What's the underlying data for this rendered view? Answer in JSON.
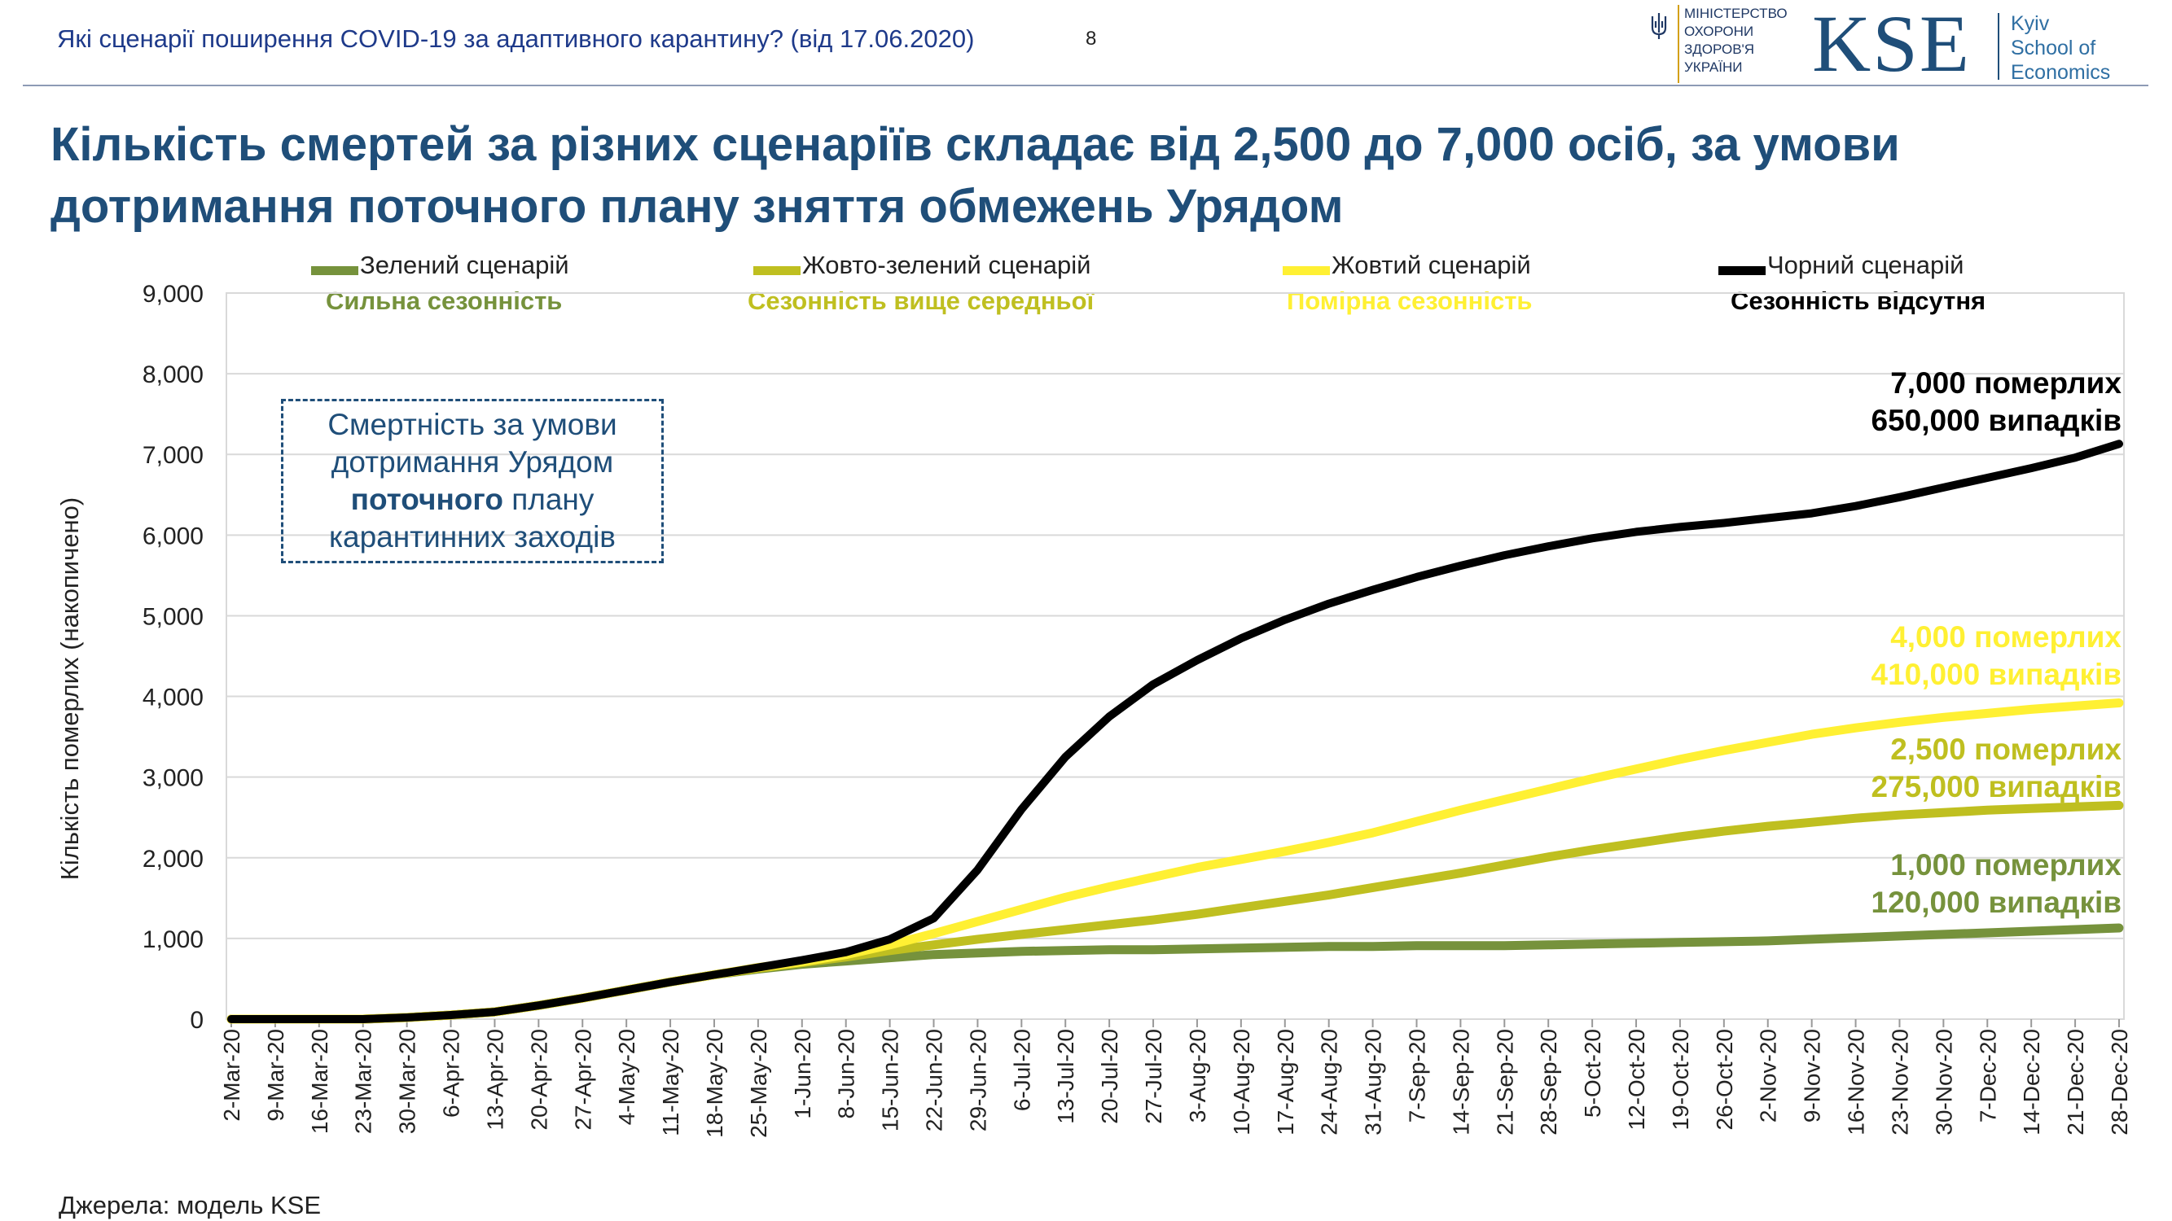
{
  "header": {
    "subtitle": "Які сценарії поширення COVID-19 за адаптивного карантину? (від 17.06.2020)",
    "page_number": "8",
    "ministry_lines": [
      "Міністерство",
      "охорони",
      "здоров'я",
      "України"
    ],
    "kse_mark": "KSE",
    "kse_name_lines": [
      "Kyiv",
      "School of",
      "Economics"
    ]
  },
  "title": "Кількість смертей за різних сценаріїв складає від 2,500 до 7,000 осіб, за умови дотримання поточного плану зняття обмежень Урядом",
  "note": {
    "line1": "Смертність за умови",
    "line2": "дотримання Урядом",
    "line3_bold": "поточного",
    "line3_rest": " плану",
    "line4": "карантинних заходів"
  },
  "annotations": [
    {
      "line1": "7,000 померлих",
      "line2": "650,000 випадків"
    },
    {
      "line1": "4,000 померлих",
      "line2": "410,000 випадків"
    },
    {
      "line1": "2,500 померлих",
      "line2": "275,000 випадків"
    },
    {
      "line1": "1,000 померлих",
      "line2": "120,000 випадків"
    }
  ],
  "source": "Джерела: модель KSE",
  "colors": {
    "green": "#76923c",
    "yellow_green": "#bfbf20",
    "yellow": "#fff033",
    "black": "#000000",
    "title_blue": "#1f4e79",
    "header_blue": "#1e3a8a"
  },
  "chart_data": {
    "type": "line",
    "ylabel": "Кількість померлих (накопичено)",
    "ylim": [
      0,
      9000
    ],
    "yticks": [
      "0",
      "1,000",
      "2,000",
      "3,000",
      "4,000",
      "5,000",
      "6,000",
      "7,000",
      "8,000",
      "9,000"
    ],
    "grid": true,
    "legend_position": "top",
    "x": [
      "2-Mar-20",
      "9-Mar-20",
      "16-Mar-20",
      "23-Mar-20",
      "30-Mar-20",
      "6-Apr-20",
      "13-Apr-20",
      "20-Apr-20",
      "27-Apr-20",
      "4-May-20",
      "11-May-20",
      "18-May-20",
      "25-May-20",
      "1-Jun-20",
      "8-Jun-20",
      "15-Jun-20",
      "22-Jun-20",
      "29-Jun-20",
      "6-Jul-20",
      "13-Jul-20",
      "20-Jul-20",
      "27-Jul-20",
      "3-Aug-20",
      "10-Aug-20",
      "17-Aug-20",
      "24-Aug-20",
      "31-Aug-20",
      "7-Sep-20",
      "14-Sep-20",
      "21-Sep-20",
      "28-Sep-20",
      "5-Oct-20",
      "12-Oct-20",
      "19-Oct-20",
      "26-Oct-20",
      "2-Nov-20",
      "9-Nov-20",
      "16-Nov-20",
      "23-Nov-20",
      "30-Nov-20",
      "7-Dec-20",
      "14-Dec-20",
      "21-Dec-20",
      "28-Dec-20"
    ],
    "series": [
      {
        "name": "Зелений сценарій",
        "description": "Сильна сезонність",
        "color": "#76923c",
        "values": [
          0,
          0,
          0,
          0,
          20,
          50,
          90,
          170,
          260,
          360,
          460,
          550,
          620,
          680,
          720,
          760,
          800,
          820,
          840,
          850,
          860,
          860,
          870,
          880,
          890,
          900,
          900,
          910,
          910,
          910,
          920,
          930,
          940,
          950,
          960,
          970,
          990,
          1010,
          1030,
          1050,
          1070,
          1090,
          1110,
          1130
        ]
      },
      {
        "name": "Жовто-зелений сценарій",
        "description": "Сезонність вище середньої",
        "color": "#bfbf20",
        "values": [
          0,
          0,
          0,
          0,
          20,
          50,
          90,
          170,
          260,
          360,
          460,
          550,
          630,
          700,
          770,
          850,
          920,
          990,
          1050,
          1110,
          1170,
          1230,
          1300,
          1380,
          1460,
          1540,
          1630,
          1720,
          1810,
          1910,
          2010,
          2100,
          2180,
          2260,
          2330,
          2390,
          2440,
          2490,
          2530,
          2560,
          2590,
          2610,
          2630,
          2650
        ]
      },
      {
        "name": "Жовтий сценарій",
        "description": "Помірна сезонність",
        "color": "#fff033",
        "values": [
          0,
          0,
          0,
          0,
          20,
          50,
          90,
          170,
          260,
          360,
          460,
          550,
          640,
          710,
          800,
          920,
          1060,
          1210,
          1360,
          1510,
          1640,
          1760,
          1880,
          1980,
          2080,
          2190,
          2310,
          2450,
          2590,
          2720,
          2850,
          2980,
          3100,
          3220,
          3330,
          3430,
          3530,
          3610,
          3680,
          3740,
          3790,
          3840,
          3880,
          3920
        ]
      },
      {
        "name": "Чорний сценарій",
        "description": "Сезонність відсутня",
        "color": "#000000",
        "values": [
          0,
          0,
          0,
          0,
          20,
          50,
          90,
          170,
          260,
          360,
          460,
          550,
          640,
          730,
          830,
          990,
          1250,
          1850,
          2600,
          3250,
          3750,
          4150,
          4450,
          4720,
          4950,
          5150,
          5320,
          5480,
          5620,
          5750,
          5860,
          5960,
          6040,
          6100,
          6150,
          6210,
          6270,
          6360,
          6470,
          6590,
          6710,
          6830,
          6960,
          7130
        ]
      }
    ]
  }
}
